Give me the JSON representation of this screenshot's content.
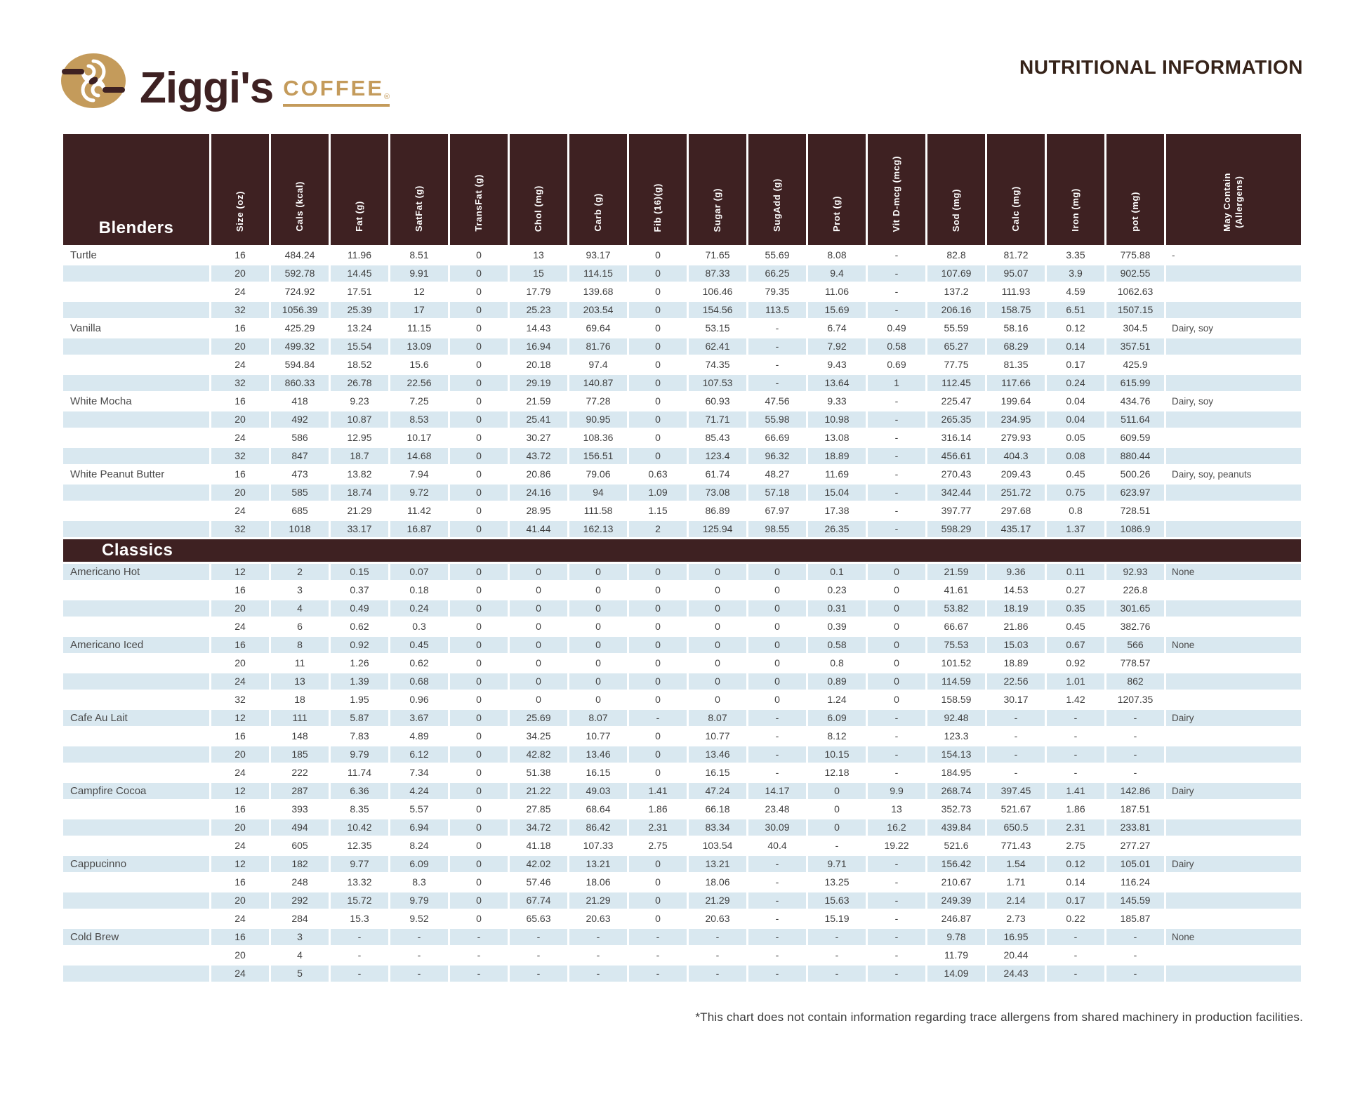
{
  "brand": {
    "name": "Ziggi's",
    "word": "COFFEE",
    "registered": "®"
  },
  "title": "NUTRITIONAL INFORMATION",
  "footnote": "*This chart does not contain information regarding trace allergens from shared machinery in production facilities.",
  "colors": {
    "dark_brown": "#3E2122",
    "stripe_blue": "#D9E8F0",
    "brand_gold": "#C49B5B"
  },
  "table": {
    "columns": [
      "Blenders",
      "Size (oz)",
      "Cals (kcal)",
      "Fat (g)",
      "SatFat (g)",
      "TransFat (g)",
      "Chol (mg)",
      "Carb (g)",
      "Fib (16)(g)",
      "Sugar (g)",
      "SugAdd (g)",
      "Prot (g)",
      "Vit D-mcg (mcg)",
      "Sod (mg)",
      "Calc (mg)",
      "Iron (mg)",
      "pot (mg)",
      "May Contain\n(Allergens)"
    ],
    "sections": [
      {
        "bar_label": null,
        "first_row_shaded": false,
        "groups": [
          {
            "name": "Turtle",
            "allergens": "-",
            "rows": [
              [
                "16",
                "484.24",
                "11.96",
                "8.51",
                "0",
                "13",
                "93.17",
                "0",
                "71.65",
                "55.69",
                "8.08",
                "-",
                "82.8",
                "81.72",
                "3.35",
                "775.88"
              ],
              [
                "20",
                "592.78",
                "14.45",
                "9.91",
                "0",
                "15",
                "114.15",
                "0",
                "87.33",
                "66.25",
                "9.4",
                "-",
                "107.69",
                "95.07",
                "3.9",
                "902.55"
              ],
              [
                "24",
                "724.92",
                "17.51",
                "12",
                "0",
                "17.79",
                "139.68",
                "0",
                "106.46",
                "79.35",
                "11.06",
                "-",
                "137.2",
                "111.93",
                "4.59",
                "1062.63"
              ],
              [
                "32",
                "1056.39",
                "25.39",
                "17",
                "0",
                "25.23",
                "203.54",
                "0",
                "154.56",
                "113.5",
                "15.69",
                "-",
                "206.16",
                "158.75",
                "6.51",
                "1507.15"
              ]
            ]
          },
          {
            "name": "Vanilla",
            "allergens": "Dairy, soy",
            "rows": [
              [
                "16",
                "425.29",
                "13.24",
                "11.15",
                "0",
                "14.43",
                "69.64",
                "0",
                "53.15",
                "-",
                "6.74",
                "0.49",
                "55.59",
                "58.16",
                "0.12",
                "304.5"
              ],
              [
                "20",
                "499.32",
                "15.54",
                "13.09",
                "0",
                "16.94",
                "81.76",
                "0",
                "62.41",
                "-",
                "7.92",
                "0.58",
                "65.27",
                "68.29",
                "0.14",
                "357.51"
              ],
              [
                "24",
                "594.84",
                "18.52",
                "15.6",
                "0",
                "20.18",
                "97.4",
                "0",
                "74.35",
                "-",
                "9.43",
                "0.69",
                "77.75",
                "81.35",
                "0.17",
                "425.9"
              ],
              [
                "32",
                "860.33",
                "26.78",
                "22.56",
                "0",
                "29.19",
                "140.87",
                "0",
                "107.53",
                "-",
                "13.64",
                "1",
                "112.45",
                "117.66",
                "0.24",
                "615.99"
              ]
            ]
          },
          {
            "name": "White Mocha",
            "allergens": "Dairy, soy",
            "rows": [
              [
                "16",
                "418",
                "9.23",
                "7.25",
                "0",
                "21.59",
                "77.28",
                "0",
                "60.93",
                "47.56",
                "9.33",
                "-",
                "225.47",
                "199.64",
                "0.04",
                "434.76"
              ],
              [
                "20",
                "492",
                "10.87",
                "8.53",
                "0",
                "25.41",
                "90.95",
                "0",
                "71.71",
                "55.98",
                "10.98",
                "-",
                "265.35",
                "234.95",
                "0.04",
                "511.64"
              ],
              [
                "24",
                "586",
                "12.95",
                "10.17",
                "0",
                "30.27",
                "108.36",
                "0",
                "85.43",
                "66.69",
                "13.08",
                "-",
                "316.14",
                "279.93",
                "0.05",
                "609.59"
              ],
              [
                "32",
                "847",
                "18.7",
                "14.68",
                "0",
                "43.72",
                "156.51",
                "0",
                "123.4",
                "96.32",
                "18.89",
                "-",
                "456.61",
                "404.3",
                "0.08",
                "880.44"
              ]
            ]
          },
          {
            "name": "White Peanut Butter",
            "allergens": "Dairy, soy, peanuts",
            "rows": [
              [
                "16",
                "473",
                "13.82",
                "7.94",
                "0",
                "20.86",
                "79.06",
                "0.63",
                "61.74",
                "48.27",
                "11.69",
                "-",
                "270.43",
                "209.43",
                "0.45",
                "500.26"
              ],
              [
                "20",
                "585",
                "18.74",
                "9.72",
                "0",
                "24.16",
                "94",
                "1.09",
                "73.08",
                "57.18",
                "15.04",
                "-",
                "342.44",
                "251.72",
                "0.75",
                "623.97"
              ],
              [
                "24",
                "685",
                "21.29",
                "11.42",
                "0",
                "28.95",
                "111.58",
                "1.15",
                "86.89",
                "67.97",
                "17.38",
                "-",
                "397.77",
                "297.68",
                "0.8",
                "728.51"
              ],
              [
                "32",
                "1018",
                "33.17",
                "16.87",
                "0",
                "41.44",
                "162.13",
                "2",
                "125.94",
                "98.55",
                "26.35",
                "-",
                "598.29",
                "435.17",
                "1.37",
                "1086.9"
              ]
            ]
          }
        ]
      },
      {
        "bar_label": "Classics",
        "first_row_shaded": true,
        "groups": [
          {
            "name": "Americano Hot",
            "allergens": "None",
            "rows": [
              [
                "12",
                "2",
                "0.15",
                "0.07",
                "0",
                "0",
                "0",
                "0",
                "0",
                "0",
                "0.1",
                "0",
                "21.59",
                "9.36",
                "0.11",
                "92.93"
              ],
              [
                "16",
                "3",
                "0.37",
                "0.18",
                "0",
                "0",
                "0",
                "0",
                "0",
                "0",
                "0.23",
                "0",
                "41.61",
                "14.53",
                "0.27",
                "226.8"
              ],
              [
                "20",
                "4",
                "0.49",
                "0.24",
                "0",
                "0",
                "0",
                "0",
                "0",
                "0",
                "0.31",
                "0",
                "53.82",
                "18.19",
                "0.35",
                "301.65"
              ],
              [
                "24",
                "6",
                "0.62",
                "0.3",
                "0",
                "0",
                "0",
                "0",
                "0",
                "0",
                "0.39",
                "0",
                "66.67",
                "21.86",
                "0.45",
                "382.76"
              ]
            ]
          },
          {
            "name": "Americano Iced",
            "allergens": "None",
            "rows": [
              [
                "16",
                "8",
                "0.92",
                "0.45",
                "0",
                "0",
                "0",
                "0",
                "0",
                "0",
                "0.58",
                "0",
                "75.53",
                "15.03",
                "0.67",
                "566"
              ],
              [
                "20",
                "11",
                "1.26",
                "0.62",
                "0",
                "0",
                "0",
                "0",
                "0",
                "0",
                "0.8",
                "0",
                "101.52",
                "18.89",
                "0.92",
                "778.57"
              ],
              [
                "24",
                "13",
                "1.39",
                "0.68",
                "0",
                "0",
                "0",
                "0",
                "0",
                "0",
                "0.89",
                "0",
                "114.59",
                "22.56",
                "1.01",
                "862"
              ],
              [
                "32",
                "18",
                "1.95",
                "0.96",
                "0",
                "0",
                "0",
                "0",
                "0",
                "0",
                "1.24",
                "0",
                "158.59",
                "30.17",
                "1.42",
                "1207.35"
              ]
            ]
          },
          {
            "name": "Cafe Au Lait",
            "allergens": "Dairy",
            "rows": [
              [
                "12",
                "111",
                "5.87",
                "3.67",
                "0",
                "25.69",
                "8.07",
                "-",
                "8.07",
                "-",
                "6.09",
                "-",
                "92.48",
                "-",
                "-",
                "-"
              ],
              [
                "16",
                "148",
                "7.83",
                "4.89",
                "0",
                "34.25",
                "10.77",
                "0",
                "10.77",
                "-",
                "8.12",
                "-",
                "123.3",
                "-",
                "-",
                "-"
              ],
              [
                "20",
                "185",
                "9.79",
                "6.12",
                "0",
                "42.82",
                "13.46",
                "0",
                "13.46",
                "-",
                "10.15",
                "-",
                "154.13",
                "-",
                "-",
                "-"
              ],
              [
                "24",
                "222",
                "11.74",
                "7.34",
                "0",
                "51.38",
                "16.15",
                "0",
                "16.15",
                "-",
                "12.18",
                "-",
                "184.95",
                "-",
                "-",
                "-"
              ]
            ]
          },
          {
            "name": "Campfire Cocoa",
            "allergens": "Dairy",
            "rows": [
              [
                "12",
                "287",
                "6.36",
                "4.24",
                "0",
                "21.22",
                "49.03",
                "1.41",
                "47.24",
                "14.17",
                "0",
                "9.9",
                "268.74",
                "397.45",
                "1.41",
                "142.86"
              ],
              [
                "16",
                "393",
                "8.35",
                "5.57",
                "0",
                "27.85",
                "68.64",
                "1.86",
                "66.18",
                "23.48",
                "0",
                "13",
                "352.73",
                "521.67",
                "1.86",
                "187.51"
              ],
              [
                "20",
                "494",
                "10.42",
                "6.94",
                "0",
                "34.72",
                "86.42",
                "2.31",
                "83.34",
                "30.09",
                "0",
                "16.2",
                "439.84",
                "650.5",
                "2.31",
                "233.81"
              ],
              [
                "24",
                "605",
                "12.35",
                "8.24",
                "0",
                "41.18",
                "107.33",
                "2.75",
                "103.54",
                "40.4",
                "-",
                "19.22",
                "521.6",
                "771.43",
                "2.75",
                "277.27"
              ]
            ]
          },
          {
            "name": "Cappucinno",
            "allergens": "Dairy",
            "rows": [
              [
                "12",
                "182",
                "9.77",
                "6.09",
                "0",
                "42.02",
                "13.21",
                "0",
                "13.21",
                "-",
                "9.71",
                "-",
                "156.42",
                "1.54",
                "0.12",
                "105.01"
              ],
              [
                "16",
                "248",
                "13.32",
                "8.3",
                "0",
                "57.46",
                "18.06",
                "0",
                "18.06",
                "-",
                "13.25",
                "-",
                "210.67",
                "1.71",
                "0.14",
                "116.24"
              ],
              [
                "20",
                "292",
                "15.72",
                "9.79",
                "0",
                "67.74",
                "21.29",
                "0",
                "21.29",
                "-",
                "15.63",
                "-",
                "249.39",
                "2.14",
                "0.17",
                "145.59"
              ],
              [
                "24",
                "284",
                "15.3",
                "9.52",
                "0",
                "65.63",
                "20.63",
                "0",
                "20.63",
                "-",
                "15.19",
                "-",
                "246.87",
                "2.73",
                "0.22",
                "185.87"
              ]
            ]
          },
          {
            "name": "Cold Brew",
            "allergens": "None",
            "rows": [
              [
                "16",
                "3",
                "-",
                "-",
                "-",
                "-",
                "-",
                "-",
                "-",
                "-",
                "-",
                "-",
                "9.78",
                "16.95",
                "-",
                "-"
              ],
              [
                "20",
                "4",
                "-",
                "-",
                "-",
                "-",
                "-",
                "-",
                "-",
                "-",
                "-",
                "-",
                "11.79",
                "20.44",
                "-",
                "-"
              ],
              [
                "24",
                "5",
                "-",
                "-",
                "-",
                "-",
                "-",
                "-",
                "-",
                "-",
                "-",
                "-",
                "14.09",
                "24.43",
                "-",
                "-"
              ]
            ]
          }
        ]
      }
    ]
  }
}
